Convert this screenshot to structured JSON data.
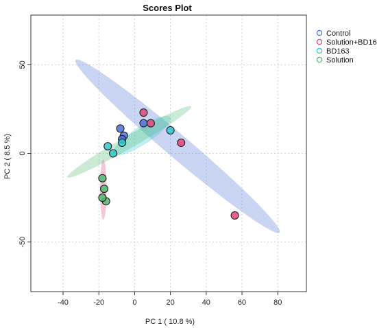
{
  "chart_data": {
    "type": "scatter",
    "title": "Scores Plot",
    "xlabel": "PC 1 ( 10.8 %)",
    "ylabel": "PC 2 ( 8.5 %)",
    "xlim": [
      -58,
      96
    ],
    "ylim": [
      -78,
      78
    ],
    "xticks": [
      -40,
      -20,
      0,
      20,
      40,
      60,
      80
    ],
    "yticks": [
      50,
      0,
      -50
    ],
    "grid": true,
    "legend_position": "top-right",
    "series": [
      {
        "name": "Control",
        "color": "#4f6fd8",
        "ellipse": {
          "center": [
            24,
            4
          ],
          "semi_major": 75,
          "semi_minor": 6.5,
          "angle_deg": -40.5
        },
        "points": [
          [
            -8,
            14
          ],
          [
            -6,
            10
          ],
          [
            -7,
            8
          ],
          [
            5,
            17
          ]
        ]
      },
      {
        "name": "Solution+BD16",
        "color": "#e0457b",
        "ellipse": {
          "center": [
            -17.5,
            -20.5
          ],
          "semi_major": 17,
          "semi_minor": 1.8,
          "angle_deg": -90
        },
        "points": [
          [
            5,
            23
          ],
          [
            9,
            17
          ],
          [
            26,
            6
          ],
          [
            56,
            -35
          ]
        ]
      },
      {
        "name": "BD163",
        "color": "#33c8d0",
        "ellipse": {
          "center": [
            4,
            10
          ],
          "semi_major": 19,
          "semi_minor": 5,
          "angle_deg": 33
        },
        "points": [
          [
            -15,
            4
          ],
          [
            -12,
            0
          ],
          [
            -7,
            6
          ],
          [
            20,
            13
          ]
        ]
      },
      {
        "name": "Solution",
        "color": "#4fb870",
        "ellipse": {
          "center": [
            -3,
            6.5
          ],
          "semi_major": 40,
          "semi_minor": 3.5,
          "angle_deg": 30
        },
        "points": [
          [
            -18,
            -14
          ],
          [
            -17,
            -20
          ],
          [
            -16,
            -27
          ],
          [
            -18,
            -25
          ]
        ]
      }
    ]
  }
}
